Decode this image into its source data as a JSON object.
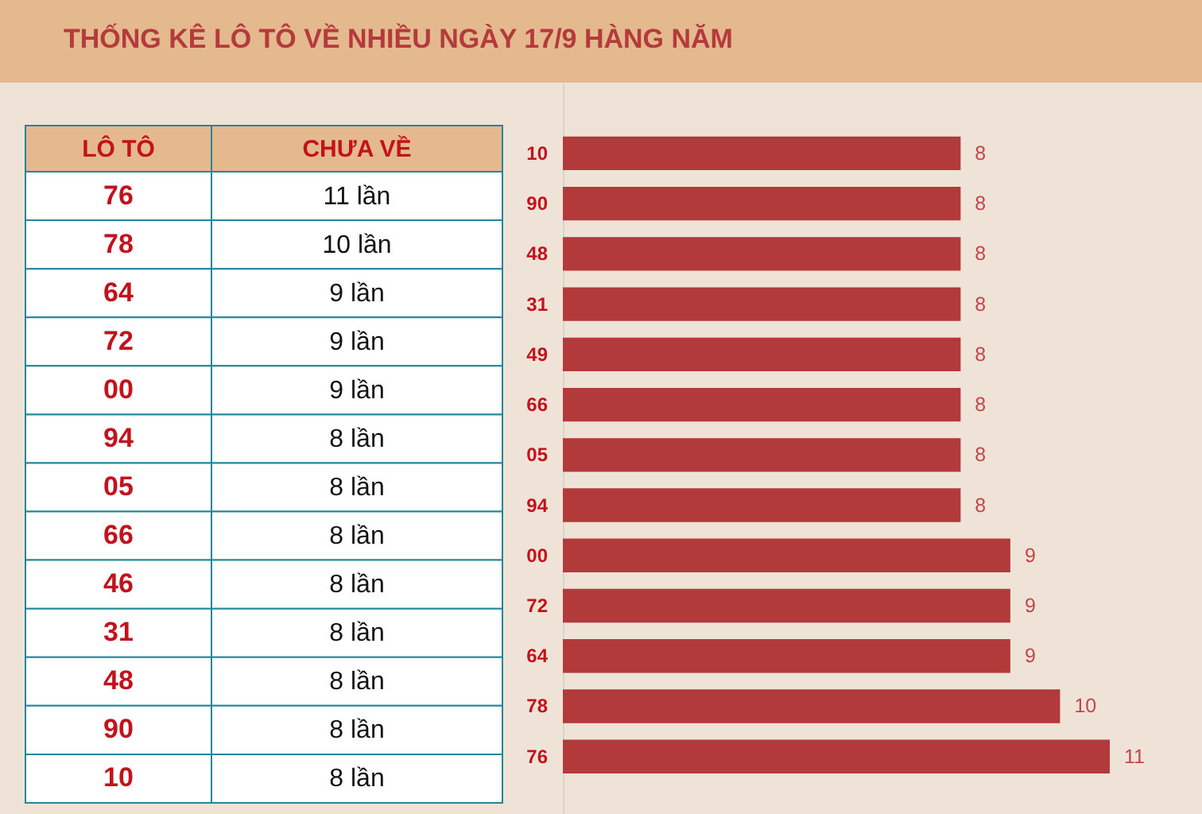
{
  "chart_data": [
    {
      "type": "other",
      "title": "THỐNG KÊ LÔ TÔ VỀ NHIỀU NGÀY 17/9 HÀNG NĂM",
      "xlabel": "LÔ TÔ",
      "ylabel": "CHƯA VỀ",
      "categories": [
        "76",
        "78",
        "64",
        "72",
        "00",
        "94",
        "05",
        "66",
        "46",
        "31",
        "48",
        "90",
        "10"
      ],
      "value_labels": [
        "11 lần",
        "10 lần",
        "9 lần",
        "9 lần",
        "9 lần",
        "8 lần",
        "8 lần",
        "8 lần",
        "8 lần",
        "8 lần",
        "8 lần",
        "8 lần",
        "8 lần"
      ]
    },
    {
      "type": "bar",
      "orientation": "horizontal",
      "categories": [
        "10",
        "90",
        "48",
        "31",
        "49",
        "66",
        "05",
        "94",
        "00",
        "72",
        "64",
        "78",
        "76"
      ],
      "values": [
        8,
        8,
        8,
        8,
        8,
        8,
        8,
        8,
        9,
        9,
        9,
        10,
        11
      ],
      "color": "#b33a3a",
      "data_labels": true
    }
  ]
}
